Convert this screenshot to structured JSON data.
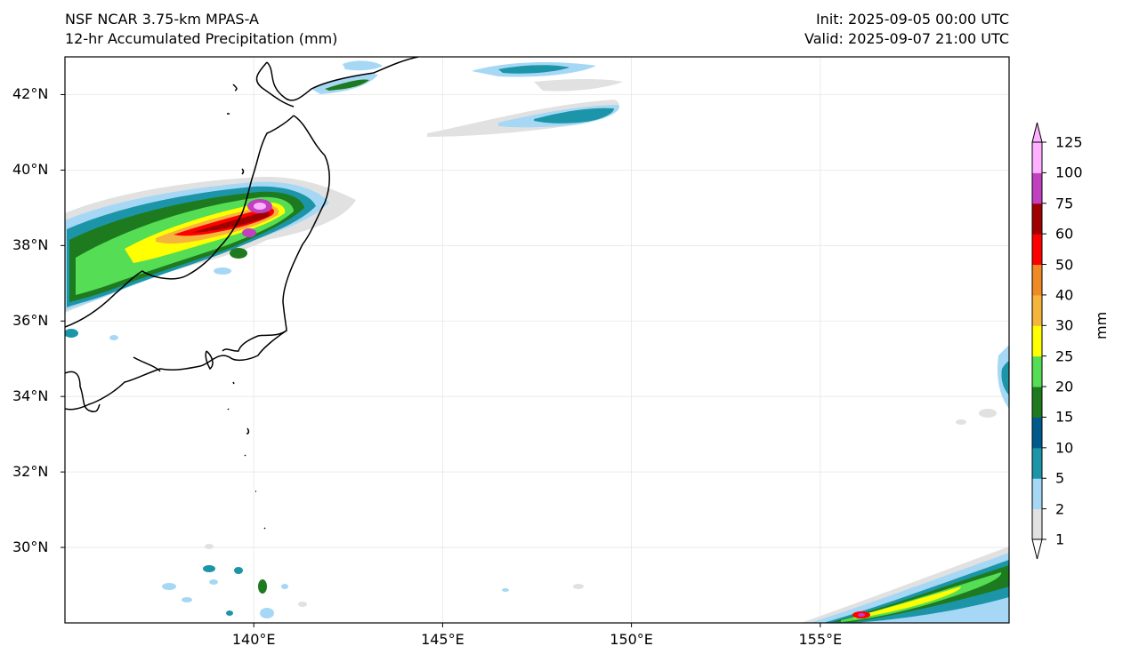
{
  "header": {
    "title_line1": "NSF NCAR 3.75-km MPAS-A",
    "title_line2": "12-hr Accumulated Precipitation (mm)",
    "init": "Init: 2025-09-05 00:00 UTC",
    "valid": "Valid: 2025-09-07 21:00 UTC"
  },
  "map": {
    "lon_range": [
      135,
      160
    ],
    "lat_range": [
      28,
      43
    ],
    "lat_ticks": [
      {
        "value": 42,
        "label": "42°N"
      },
      {
        "value": 40,
        "label": "40°N"
      },
      {
        "value": 38,
        "label": "38°N"
      },
      {
        "value": 36,
        "label": "36°N"
      },
      {
        "value": 34,
        "label": "34°N"
      },
      {
        "value": 32,
        "label": "32°N"
      },
      {
        "value": 30,
        "label": "30°N"
      }
    ],
    "lon_ticks": [
      {
        "value": 140,
        "label": "140°E"
      },
      {
        "value": 145,
        "label": "145°E"
      },
      {
        "value": 150,
        "label": "150°E"
      },
      {
        "value": 155,
        "label": "155°E"
      }
    ],
    "gridlines": true
  },
  "colorbar": {
    "title": "mm",
    "levels": [
      {
        "value": 1,
        "label": "1"
      },
      {
        "value": 2,
        "label": "2"
      },
      {
        "value": 5,
        "label": "5"
      },
      {
        "value": 10,
        "label": "10"
      },
      {
        "value": 15,
        "label": "15"
      },
      {
        "value": 20,
        "label": "20"
      },
      {
        "value": 25,
        "label": "25"
      },
      {
        "value": 30,
        "label": "30"
      },
      {
        "value": 40,
        "label": "40"
      },
      {
        "value": 50,
        "label": "50"
      },
      {
        "value": 60,
        "label": "60"
      },
      {
        "value": 75,
        "label": "75"
      },
      {
        "value": 100,
        "label": "100"
      },
      {
        "value": 125,
        "label": "125"
      }
    ],
    "colors": [
      "#e1e1e1",
      "#a6d8f5",
      "#1c95a8",
      "#005a8c",
      "#1e7a1e",
      "#55dd55",
      "#ffff00",
      "#f5b43c",
      "#f08a24",
      "#ff0000",
      "#a00000",
      "#c040c0",
      "#ffb0ff"
    ],
    "extend": "both"
  }
}
